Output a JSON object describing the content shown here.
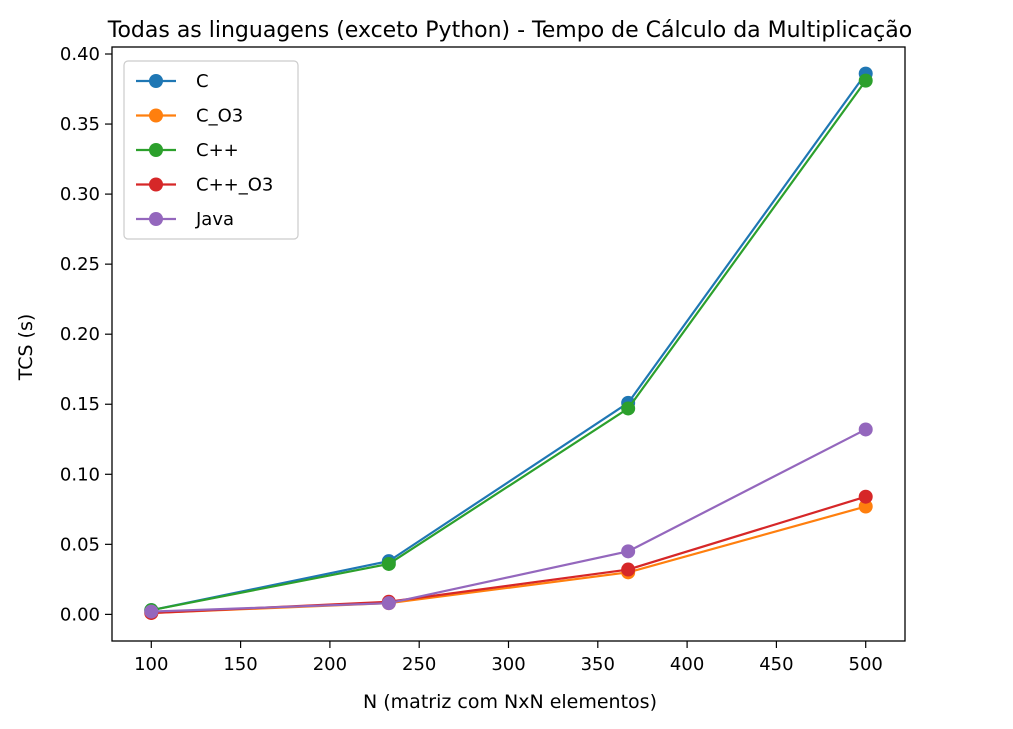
{
  "chart_data": {
    "type": "line",
    "title": "Todas as linguagens (exceto Python) - Tempo de Cálculo da Multiplicação",
    "xlabel": "N (matriz com NxN elementos)",
    "ylabel": "TCS (s)",
    "x": [
      100,
      233,
      367,
      500
    ],
    "xlim": [
      78,
      522
    ],
    "ylim": [
      -0.019,
      0.405
    ],
    "xticks": [
      100,
      150,
      200,
      250,
      300,
      350,
      400,
      450,
      500
    ],
    "xtick_labels": [
      "100",
      "150",
      "200",
      "250",
      "300",
      "350",
      "400",
      "450",
      "500"
    ],
    "yticks": [
      0.0,
      0.05,
      0.1,
      0.15,
      0.2,
      0.25,
      0.3,
      0.35,
      0.4
    ],
    "ytick_labels": [
      "0.00",
      "0.05",
      "0.10",
      "0.15",
      "0.20",
      "0.25",
      "0.30",
      "0.35",
      "0.40"
    ],
    "grid": false,
    "legend_position": "top-left",
    "series": [
      {
        "name": "C",
        "color": "#1f77b4",
        "values": [
          0.003,
          0.038,
          0.151,
          0.386
        ]
      },
      {
        "name": "C_O3",
        "color": "#ff7f0e",
        "values": [
          0.001,
          0.008,
          0.03,
          0.077
        ]
      },
      {
        "name": "C++",
        "color": "#2ca02c",
        "values": [
          0.003,
          0.036,
          0.147,
          0.381
        ]
      },
      {
        "name": "C++_O3",
        "color": "#d62728",
        "values": [
          0.001,
          0.009,
          0.032,
          0.084
        ]
      },
      {
        "name": "Java",
        "color": "#9467bd",
        "values": [
          0.002,
          0.008,
          0.045,
          0.132
        ]
      }
    ]
  }
}
